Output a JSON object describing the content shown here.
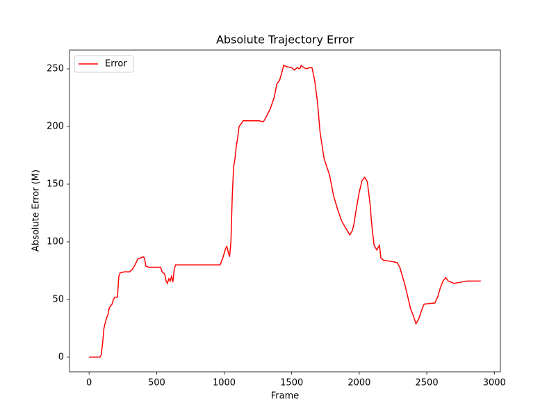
{
  "chart_data": {
    "type": "line",
    "title": "Absolute Trajectory Error",
    "xlabel": "Frame",
    "ylabel": "Absolute Error (M)",
    "x": [
      0,
      80,
      90,
      100,
      110,
      120,
      130,
      140,
      150,
      170,
      180,
      190,
      210,
      220,
      230,
      260,
      300,
      320,
      340,
      360,
      380,
      400,
      410,
      420,
      440,
      480,
      530,
      540,
      560,
      570,
      580,
      590,
      600,
      610,
      620,
      630,
      640,
      700,
      900,
      970,
      990,
      1010,
      1020,
      1030,
      1040,
      1050,
      1060,
      1070,
      1080,
      1090,
      1100,
      1110,
      1130,
      1140,
      1200,
      1260,
      1290,
      1310,
      1340,
      1370,
      1390,
      1410,
      1430,
      1440,
      1460,
      1500,
      1520,
      1540,
      1560,
      1570,
      1590,
      1610,
      1630,
      1650,
      1670,
      1690,
      1710,
      1740,
      1780,
      1810,
      1840,
      1870,
      1900,
      1930,
      1950,
      1960,
      1980,
      2000,
      2020,
      2040,
      2060,
      2080,
      2090,
      2100,
      2110,
      2130,
      2150,
      2160,
      2180,
      2240,
      2280,
      2300,
      2320,
      2340,
      2360,
      2380,
      2400,
      2420,
      2440,
      2460,
      2480,
      2560,
      2580,
      2600,
      2620,
      2640,
      2660,
      2700,
      2750,
      2800,
      2900
    ],
    "series": [
      {
        "name": "Error",
        "color": "#ff0000",
        "values": [
          0,
          0,
          2,
          12,
          25,
          30,
          34,
          37,
          43,
          46,
          50,
          52,
          52,
          70,
          73,
          74,
          74,
          76,
          80,
          85,
          86,
          87,
          86,
          79,
          78,
          78,
          78,
          74,
          72,
          66,
          64,
          68,
          66,
          70,
          65,
          76,
          80,
          80,
          80,
          80,
          86,
          94,
          96,
          91,
          87,
          100,
          140,
          165,
          172,
          183,
          190,
          200,
          203,
          205,
          205,
          205,
          204,
          208,
          215,
          225,
          237,
          240,
          248,
          253,
          252,
          251,
          249,
          251,
          250,
          253,
          251,
          250,
          251,
          251,
          240,
          222,
          195,
          172,
          158,
          140,
          128,
          118,
          112,
          106,
          110,
          115,
          130,
          143,
          153,
          156,
          152,
          133,
          118,
          107,
          97,
          93,
          97,
          86,
          84,
          83,
          82,
          78,
          70,
          62,
          52,
          42,
          36,
          29,
          33,
          40,
          46,
          47,
          52,
          60,
          66,
          69,
          66,
          64,
          65,
          66,
          66
        ]
      }
    ],
    "xlim": [
      -145,
      3045
    ],
    "ylim": [
      -12.7,
      266.3
    ],
    "xticks": [
      0,
      500,
      1000,
      1500,
      2000,
      2500,
      3000
    ],
    "yticks": [
      0,
      50,
      100,
      150,
      200,
      250
    ],
    "legend": "upper left"
  }
}
